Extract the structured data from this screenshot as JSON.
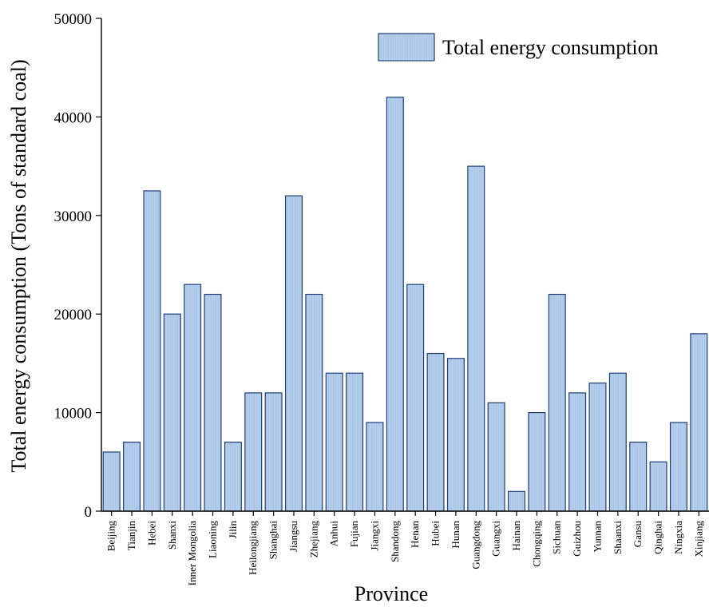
{
  "chart_data": {
    "type": "bar",
    "xlabel": "Province",
    "ylabel": "Total energy consumption (Tons of standard coal)",
    "ylim": [
      0,
      50000
    ],
    "yticks": [
      0,
      10000,
      20000,
      30000,
      40000,
      50000
    ],
    "legend": {
      "position": "top-right",
      "entries": [
        "Total energy consumption"
      ]
    },
    "grid": false,
    "bar_color": "#b4cdea",
    "bar_edge_color": "#1f3f7a",
    "categories": [
      "Beijing",
      "Tianjin",
      "Hebei",
      "Shanxi",
      "Inner Mongolia",
      "Liaoning",
      "Jilin",
      "Heilongjiang",
      "Shanghai",
      "Jiangsu",
      "Zhejiang",
      "Anhui",
      "Fujian",
      "Jiangxi",
      "Shandong",
      "Henan",
      "Hubei",
      "Hunan",
      "Guangdong",
      "Guangxi",
      "Hainan",
      "Chongqing",
      "Sichuan",
      "Guizhou",
      "Yunnan",
      "Shaanxi",
      "Gansu",
      "Qinghai",
      "Ningxia",
      "Xinjiang"
    ],
    "series": [
      {
        "name": "Total energy consumption",
        "values": [
          6000,
          7000,
          32500,
          20000,
          23000,
          22000,
          7000,
          12000,
          12000,
          32000,
          22000,
          14000,
          14000,
          9000,
          42000,
          23000,
          16000,
          15500,
          35000,
          11000,
          2000,
          10000,
          22000,
          12000,
          13000,
          14000,
          7000,
          5000,
          9000,
          18000
        ]
      }
    ]
  }
}
